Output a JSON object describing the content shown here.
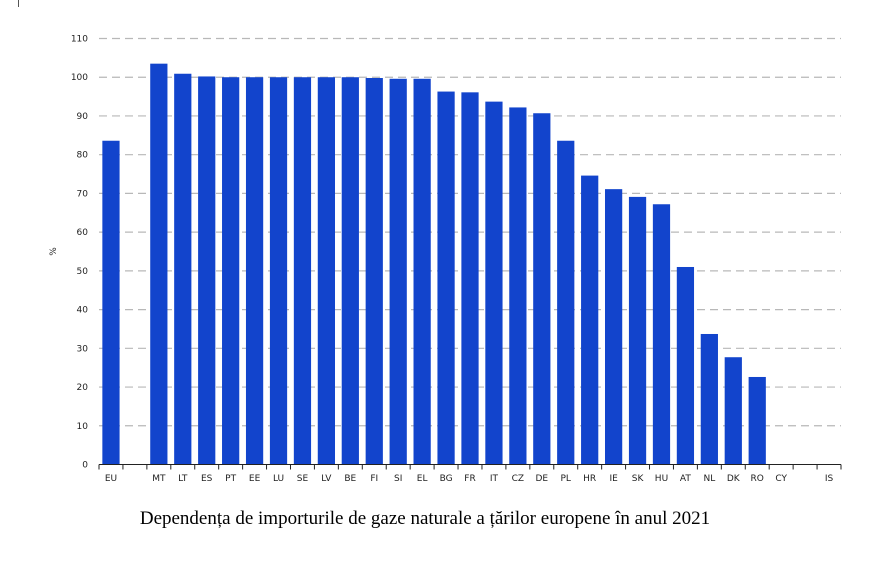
{
  "chart_data": {
    "type": "bar",
    "title": "Dependența de importurile de gaze naturale a țărilor europene în anul 2021",
    "ylabel": "%",
    "xlabel": "",
    "ylim": [
      0,
      110
    ],
    "yticks": [
      0,
      10,
      20,
      30,
      40,
      50,
      60,
      70,
      80,
      90,
      100,
      110
    ],
    "grid": "horizontal-dashed",
    "bar_color": "#1244CC",
    "categories": [
      "EU",
      "",
      "MT",
      "LT",
      "ES",
      "PT",
      "EE",
      "LU",
      "SE",
      "LV",
      "BE",
      "FI",
      "SI",
      "EL",
      "BG",
      "FR",
      "IT",
      "CZ",
      "DE",
      "PL",
      "HR",
      "IE",
      "SK",
      "HU",
      "AT",
      "NL",
      "DK",
      "RO",
      "CY",
      "",
      "IS"
    ],
    "values": [
      83.6,
      null,
      103.5,
      100.9,
      100.2,
      100.0,
      100.0,
      100.0,
      100.0,
      100.0,
      100.0,
      99.8,
      99.6,
      99.6,
      96.3,
      96.1,
      93.7,
      92.2,
      90.7,
      83.6,
      74.6,
      71.1,
      69.1,
      67.2,
      51.0,
      33.7,
      27.7,
      22.6,
      null,
      null,
      null
    ]
  }
}
